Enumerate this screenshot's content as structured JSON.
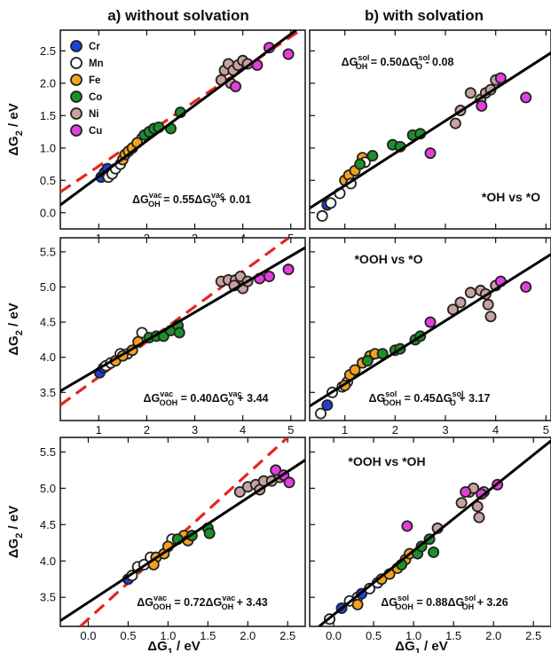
{
  "chart_data": [
    {
      "type": "scatter",
      "panel": "a-top",
      "column_title": "a) without solvation",
      "ylabel": "ΔG2 / eV",
      "xlim": [
        0.2,
        5.3
      ],
      "ylim": [
        -0.25,
        2.82
      ],
      "xticks": [
        "1",
        "2",
        "3",
        "4",
        "5"
      ],
      "yticks": [
        "0.0",
        "0.5",
        "1.0",
        "1.5",
        "2.0",
        "2.5"
      ],
      "show_x_ticklabels": true,
      "equation": {
        "lhs": "ΔG",
        "lhs_sup": "vac",
        "lhs_sub": "OH",
        "mid": " = 0.55ΔG",
        "rhs_sup": "vac",
        "rhs_sub": "O",
        "tail": " + 0.01"
      },
      "fit_line": {
        "slope": 0.55,
        "intercept": 0.01,
        "color": "#000000",
        "style": "solid"
      },
      "reference_line": {
        "slope": 0.5,
        "intercept": 0.22,
        "color": "#e8241c",
        "style": "dashed"
      },
      "legend": {
        "position": "top-left",
        "entries": [
          {
            "name": "Cr",
            "color": "#1f3fd6"
          },
          {
            "name": "Mn",
            "color": "#ffffff"
          },
          {
            "name": "Fe",
            "color": "#f3a31a"
          },
          {
            "name": "Co",
            "color": "#1d8f2a"
          },
          {
            "name": "Ni",
            "color": "#c9a2a0"
          },
          {
            "name": "Cu",
            "color": "#e53ee0"
          }
        ]
      },
      "points": [
        {
          "g": "Cr",
          "x": 1.05,
          "y": 0.55
        },
        {
          "g": "Cr",
          "x": 1.12,
          "y": 0.62
        },
        {
          "g": "Cr",
          "x": 1.18,
          "y": 0.68
        },
        {
          "g": "Mn",
          "x": 1.2,
          "y": 0.55
        },
        {
          "g": "Mn",
          "x": 1.28,
          "y": 0.6
        },
        {
          "g": "Mn",
          "x": 1.35,
          "y": 0.68
        },
        {
          "g": "Mn",
          "x": 1.45,
          "y": 0.75
        },
        {
          "g": "Mn",
          "x": 1.9,
          "y": 1.15
        },
        {
          "g": "Fe",
          "x": 1.5,
          "y": 0.82
        },
        {
          "g": "Fe",
          "x": 1.55,
          "y": 0.9
        },
        {
          "g": "Fe",
          "x": 1.62,
          "y": 0.95
        },
        {
          "g": "Fe",
          "x": 1.7,
          "y": 1.0
        },
        {
          "g": "Fe",
          "x": 1.8,
          "y": 1.08
        },
        {
          "g": "Co",
          "x": 1.95,
          "y": 1.2
        },
        {
          "g": "Co",
          "x": 2.05,
          "y": 1.25
        },
        {
          "g": "Co",
          "x": 2.15,
          "y": 1.3
        },
        {
          "g": "Co",
          "x": 2.25,
          "y": 1.32
        },
        {
          "g": "Co",
          "x": 2.5,
          "y": 1.3
        },
        {
          "g": "Co",
          "x": 2.7,
          "y": 1.55
        },
        {
          "g": "Ni",
          "x": 3.55,
          "y": 2.05
        },
        {
          "g": "Ni",
          "x": 3.62,
          "y": 2.2
        },
        {
          "g": "Ni",
          "x": 3.7,
          "y": 2.3
        },
        {
          "g": "Ni",
          "x": 3.8,
          "y": 2.2
        },
        {
          "g": "Ni",
          "x": 3.9,
          "y": 2.28
        },
        {
          "g": "Ni",
          "x": 4.0,
          "y": 2.35
        },
        {
          "g": "Ni",
          "x": 4.1,
          "y": 2.3
        },
        {
          "g": "Ni",
          "x": 3.75,
          "y": 2.0
        },
        {
          "g": "Cu",
          "x": 3.85,
          "y": 1.95
        },
        {
          "g": "Cu",
          "x": 4.3,
          "y": 2.28
        },
        {
          "g": "Cu",
          "x": 4.55,
          "y": 2.55
        },
        {
          "g": "Cu",
          "x": 4.95,
          "y": 2.45
        }
      ]
    },
    {
      "type": "scatter",
      "panel": "b-top",
      "column_title": "b) with solvation",
      "xlim": [
        0.3,
        5.1
      ],
      "ylim": [
        -0.25,
        2.82
      ],
      "xticks": [
        "1",
        "2",
        "3",
        "4",
        "5"
      ],
      "show_x_ticklabels": false,
      "equation": {
        "lhs": "ΔG",
        "lhs_sup": "sol",
        "lhs_sub": "OH",
        "mid": " = 0.50ΔG",
        "rhs_sup": "sol",
        "rhs_sub": "O",
        "tail": " - 0.08"
      },
      "panel_label": "*OH vs *O",
      "fit_line": {
        "slope": 0.5,
        "intercept": -0.08,
        "color": "#000000",
        "style": "solid"
      },
      "points": [
        {
          "g": "Mn",
          "x": 0.55,
          "y": -0.05
        },
        {
          "g": "Cr",
          "x": 0.65,
          "y": 0.12
        },
        {
          "g": "Mn",
          "x": 0.72,
          "y": 0.15
        },
        {
          "g": "Mn",
          "x": 0.9,
          "y": 0.3
        },
        {
          "g": "Fe",
          "x": 1.0,
          "y": 0.5
        },
        {
          "g": "Fe",
          "x": 1.08,
          "y": 0.58
        },
        {
          "g": "Fe",
          "x": 1.2,
          "y": 0.65
        },
        {
          "g": "Mn",
          "x": 1.12,
          "y": 0.45
        },
        {
          "g": "Fe",
          "x": 1.35,
          "y": 0.85
        },
        {
          "g": "Mn",
          "x": 1.4,
          "y": 0.78
        },
        {
          "g": "Co",
          "x": 1.3,
          "y": 0.75
        },
        {
          "g": "Co",
          "x": 1.55,
          "y": 0.88
        },
        {
          "g": "Co",
          "x": 1.95,
          "y": 1.05
        },
        {
          "g": "Co",
          "x": 2.1,
          "y": 1.02
        },
        {
          "g": "Co",
          "x": 2.35,
          "y": 1.2
        },
        {
          "g": "Co",
          "x": 2.5,
          "y": 1.22
        },
        {
          "g": "Cu",
          "x": 2.7,
          "y": 0.92
        },
        {
          "g": "Ni",
          "x": 3.2,
          "y": 1.38
        },
        {
          "g": "Ni",
          "x": 3.3,
          "y": 1.58
        },
        {
          "g": "Ni",
          "x": 3.5,
          "y": 1.85
        },
        {
          "g": "Ni",
          "x": 3.7,
          "y": 1.75
        },
        {
          "g": "Ni",
          "x": 3.8,
          "y": 1.85
        },
        {
          "g": "Ni",
          "x": 3.9,
          "y": 1.9
        },
        {
          "g": "Ni",
          "x": 4.0,
          "y": 2.05
        },
        {
          "g": "Cu",
          "x": 3.72,
          "y": 1.65
        },
        {
          "g": "Cu",
          "x": 4.1,
          "y": 2.08
        },
        {
          "g": "Cu",
          "x": 4.6,
          "y": 1.78
        }
      ]
    },
    {
      "type": "scatter",
      "panel": "a-middle",
      "ylabel": "ΔG2 / eV",
      "xlim": [
        0.2,
        5.3
      ],
      "ylim": [
        3.1,
        5.7
      ],
      "xticks": [
        "1",
        "2",
        "3",
        "4",
        "5"
      ],
      "yticks": [
        "3.5",
        "4.0",
        "4.5",
        "5.0",
        "5.5"
      ],
      "show_x_ticklabels": true,
      "equation": {
        "lhs": "ΔG",
        "lhs_sup": "vac",
        "lhs_sub": "OOH",
        "mid": " = 0.40ΔG",
        "rhs_sup": "vac",
        "rhs_sub": "O",
        "tail": " + 3.44"
      },
      "fit_line": {
        "slope": 0.4,
        "intercept": 3.44,
        "color": "#000000",
        "style": "solid"
      },
      "reference_line": {
        "slope": 0.5,
        "intercept": 3.22,
        "color": "#e8241c",
        "style": "dashed"
      },
      "points": [
        {
          "g": "Cr",
          "x": 1.02,
          "y": 3.78
        },
        {
          "g": "Cr",
          "x": 1.1,
          "y": 3.85
        },
        {
          "g": "Mn",
          "x": 1.15,
          "y": 3.88
        },
        {
          "g": "Mn",
          "x": 1.25,
          "y": 3.92
        },
        {
          "g": "Mn",
          "x": 1.45,
          "y": 4.05
        },
        {
          "g": "Mn",
          "x": 1.6,
          "y": 4.05
        },
        {
          "g": "Mn",
          "x": 1.9,
          "y": 4.35
        },
        {
          "g": "Fe",
          "x": 1.35,
          "y": 3.95
        },
        {
          "g": "Fe",
          "x": 1.5,
          "y": 4.02
        },
        {
          "g": "Fe",
          "x": 1.7,
          "y": 4.1
        },
        {
          "g": "Fe",
          "x": 1.82,
          "y": 4.22
        },
        {
          "g": "Co",
          "x": 2.05,
          "y": 4.28
        },
        {
          "g": "Co",
          "x": 2.2,
          "y": 4.3
        },
        {
          "g": "Co",
          "x": 2.35,
          "y": 4.3
        },
        {
          "g": "Co",
          "x": 2.5,
          "y": 4.38
        },
        {
          "g": "Co",
          "x": 2.65,
          "y": 4.45
        },
        {
          "g": "Co",
          "x": 2.68,
          "y": 4.35
        },
        {
          "g": "Ni",
          "x": 3.55,
          "y": 5.08
        },
        {
          "g": "Ni",
          "x": 3.7,
          "y": 5.1
        },
        {
          "g": "Ni",
          "x": 3.85,
          "y": 5.1
        },
        {
          "g": "Ni",
          "x": 3.95,
          "y": 5.15
        },
        {
          "g": "Ni",
          "x": 4.0,
          "y": 4.98
        },
        {
          "g": "Ni",
          "x": 4.1,
          "y": 5.08
        },
        {
          "g": "Ni",
          "x": 3.82,
          "y": 5.02
        },
        {
          "g": "Cu",
          "x": 4.35,
          "y": 5.12
        },
        {
          "g": "Cu",
          "x": 4.55,
          "y": 5.15
        },
        {
          "g": "Cu",
          "x": 4.95,
          "y": 5.25
        }
      ]
    },
    {
      "type": "scatter",
      "panel": "b-middle",
      "xlim": [
        0.3,
        5.1
      ],
      "ylim": [
        3.1,
        5.7
      ],
      "xticks": [
        "1",
        "2",
        "3",
        "4",
        "5"
      ],
      "show_x_ticklabels": true,
      "equation": {
        "lhs": "ΔG",
        "lhs_sup": "sol",
        "lhs_sub": "OOH",
        "mid": " = 0.45ΔG",
        "rhs_sup": "sol",
        "rhs_sub": "O",
        "tail": " + 3.17"
      },
      "panel_label": "*OOH vs *O",
      "fit_line": {
        "slope": 0.45,
        "intercept": 3.17,
        "color": "#000000",
        "style": "solid"
      },
      "points": [
        {
          "g": "Mn",
          "x": 0.52,
          "y": 3.2
        },
        {
          "g": "Cr",
          "x": 0.65,
          "y": 3.32
        },
        {
          "g": "Mn",
          "x": 0.75,
          "y": 3.5
        },
        {
          "g": "Mn",
          "x": 0.95,
          "y": 3.58
        },
        {
          "g": "Mn",
          "x": 1.05,
          "y": 3.65
        },
        {
          "g": "Fe",
          "x": 1.0,
          "y": 3.6
        },
        {
          "g": "Fe",
          "x": 1.1,
          "y": 3.75
        },
        {
          "g": "Fe",
          "x": 1.2,
          "y": 3.82
        },
        {
          "g": "Fe",
          "x": 1.35,
          "y": 3.92
        },
        {
          "g": "Fe",
          "x": 1.5,
          "y": 4.02
        },
        {
          "g": "Fe",
          "x": 1.6,
          "y": 4.05
        },
        {
          "g": "Co",
          "x": 1.45,
          "y": 3.95
        },
        {
          "g": "Co",
          "x": 1.75,
          "y": 4.05
        },
        {
          "g": "Co",
          "x": 2.0,
          "y": 4.1
        },
        {
          "g": "Co",
          "x": 2.1,
          "y": 4.12
        },
        {
          "g": "Co",
          "x": 2.4,
          "y": 4.25
        },
        {
          "g": "Co",
          "x": 2.5,
          "y": 4.3
        },
        {
          "g": "Cu",
          "x": 2.7,
          "y": 4.5
        },
        {
          "g": "Ni",
          "x": 3.15,
          "y": 4.68
        },
        {
          "g": "Ni",
          "x": 3.3,
          "y": 4.78
        },
        {
          "g": "Ni",
          "x": 3.5,
          "y": 4.92
        },
        {
          "g": "Ni",
          "x": 3.7,
          "y": 4.95
        },
        {
          "g": "Ni",
          "x": 3.8,
          "y": 4.9
        },
        {
          "g": "Ni",
          "x": 3.85,
          "y": 4.75
        },
        {
          "g": "Ni",
          "x": 3.9,
          "y": 4.58
        },
        {
          "g": "Ni",
          "x": 4.0,
          "y": 5.02
        },
        {
          "g": "Cu",
          "x": 4.1,
          "y": 5.08
        },
        {
          "g": "Cu",
          "x": 4.6,
          "y": 5.0
        }
      ]
    },
    {
      "type": "scatter",
      "panel": "a-bottom",
      "ylabel": "ΔG2 / eV",
      "xlabel": "ΔG1 / eV",
      "xlim": [
        -0.35,
        2.72
      ],
      "ylim": [
        3.1,
        5.7
      ],
      "xticks": [
        "0.0",
        "0.5",
        "1.0",
        "1.5",
        "2.0",
        "2.5"
      ],
      "yticks": [
        "3.5",
        "4.0",
        "4.5",
        "5.0",
        "5.5"
      ],
      "show_x_ticklabels": true,
      "equation": {
        "lhs": "ΔG",
        "lhs_sup": "vac",
        "lhs_sub": "OOH",
        "mid": " = 0.72ΔG",
        "rhs_sup": "vac",
        "rhs_sub": "OH",
        "tail": " + 3.43"
      },
      "fit_line": {
        "slope": 0.72,
        "intercept": 3.43,
        "color": "#000000",
        "style": "solid"
      },
      "reference_line": {
        "slope": 1.0,
        "intercept": 3.2,
        "color": "#e8241c",
        "style": "dashed"
      },
      "points": [
        {
          "g": "Cr",
          "x": 0.5,
          "y": 3.75
        },
        {
          "g": "Mn",
          "x": 0.55,
          "y": 3.8
        },
        {
          "g": "Mn",
          "x": 0.62,
          "y": 3.92
        },
        {
          "g": "Mn",
          "x": 0.7,
          "y": 3.95
        },
        {
          "g": "Mn",
          "x": 0.78,
          "y": 4.05
        },
        {
          "g": "Mn",
          "x": 1.05,
          "y": 4.3
        },
        {
          "g": "Fe",
          "x": 0.85,
          "y": 4.05
        },
        {
          "g": "Fe",
          "x": 0.95,
          "y": 4.1
        },
        {
          "g": "Fe",
          "x": 0.82,
          "y": 3.95
        },
        {
          "g": "Fe",
          "x": 1.0,
          "y": 4.2
        },
        {
          "g": "Fe",
          "x": 1.2,
          "y": 4.35
        },
        {
          "g": "Fe",
          "x": 1.25,
          "y": 4.28
        },
        {
          "g": "Co",
          "x": 1.12,
          "y": 4.3
        },
        {
          "g": "Co",
          "x": 1.3,
          "y": 4.35
        },
        {
          "g": "Co",
          "x": 1.5,
          "y": 4.45
        },
        {
          "g": "Co",
          "x": 1.52,
          "y": 4.38
        },
        {
          "g": "Ni",
          "x": 1.9,
          "y": 4.95
        },
        {
          "g": "Ni",
          "x": 2.0,
          "y": 5.02
        },
        {
          "g": "Ni",
          "x": 2.1,
          "y": 5.05
        },
        {
          "g": "Ni",
          "x": 2.15,
          "y": 4.98
        },
        {
          "g": "Ni",
          "x": 2.2,
          "y": 5.1
        },
        {
          "g": "Ni",
          "x": 2.3,
          "y": 5.1
        },
        {
          "g": "Ni",
          "x": 2.4,
          "y": 5.15
        },
        {
          "g": "Cu",
          "x": 2.35,
          "y": 5.25
        },
        {
          "g": "Cu",
          "x": 2.45,
          "y": 5.18
        },
        {
          "g": "Cu",
          "x": 2.52,
          "y": 5.08
        }
      ]
    },
    {
      "type": "scatter",
      "panel": "b-bottom",
      "xlabel": "ΔG1 / eV",
      "xlim": [
        -0.3,
        2.72
      ],
      "ylim": [
        3.1,
        5.7
      ],
      "xticks": [
        "0.0",
        "0.5",
        "1.0",
        "1.5",
        "2.0",
        "2.5"
      ],
      "show_x_ticklabels": true,
      "equation": {
        "lhs": "ΔG",
        "lhs_sup": "sol",
        "lhs_sub": "OOH",
        "mid": " = 0.88ΔG",
        "rhs_sup": "sol",
        "rhs_sub": "OH",
        "tail": " + 3.26"
      },
      "panel_label": "*OOH vs *OH",
      "fit_line": {
        "slope": 0.88,
        "intercept": 3.26,
        "color": "#000000",
        "style": "solid"
      },
      "points": [
        {
          "g": "Mn",
          "x": -0.05,
          "y": 3.2
        },
        {
          "g": "Cr",
          "x": 0.1,
          "y": 3.35
        },
        {
          "g": "Mn",
          "x": 0.2,
          "y": 3.45
        },
        {
          "g": "Mn",
          "x": 0.3,
          "y": 3.5
        },
        {
          "g": "Cr",
          "x": 0.35,
          "y": 3.55
        },
        {
          "g": "Mn",
          "x": 0.45,
          "y": 3.62
        },
        {
          "g": "Mn",
          "x": 0.55,
          "y": 3.7
        },
        {
          "g": "Fe",
          "x": 0.3,
          "y": 3.4
        },
        {
          "g": "Fe",
          "x": 0.6,
          "y": 3.75
        },
        {
          "g": "Fe",
          "x": 0.7,
          "y": 3.82
        },
        {
          "g": "Fe",
          "x": 0.8,
          "y": 3.9
        },
        {
          "g": "Fe",
          "x": 0.9,
          "y": 4.02
        },
        {
          "g": "Fe",
          "x": 0.95,
          "y": 4.1
        },
        {
          "g": "Co",
          "x": 0.85,
          "y": 3.95
        },
        {
          "g": "Co",
          "x": 1.05,
          "y": 4.1
        },
        {
          "g": "Co",
          "x": 1.1,
          "y": 4.2
        },
        {
          "g": "Co",
          "x": 1.2,
          "y": 4.3
        },
        {
          "g": "Co",
          "x": 1.25,
          "y": 4.12
        },
        {
          "g": "Cu",
          "x": 0.92,
          "y": 4.48
        },
        {
          "g": "Ni",
          "x": 1.3,
          "y": 4.45
        },
        {
          "g": "Ni",
          "x": 1.6,
          "y": 4.8
        },
        {
          "g": "Ni",
          "x": 1.7,
          "y": 4.95
        },
        {
          "g": "Ni",
          "x": 1.75,
          "y": 5.0
        },
        {
          "g": "Ni",
          "x": 1.8,
          "y": 4.75
        },
        {
          "g": "Ni",
          "x": 1.82,
          "y": 4.6
        },
        {
          "g": "Ni",
          "x": 1.88,
          "y": 4.95
        },
        {
          "g": "Cu",
          "x": 1.65,
          "y": 4.95
        },
        {
          "g": "Cu",
          "x": 1.85,
          "y": 4.92
        },
        {
          "g": "Cu",
          "x": 2.05,
          "y": 5.05
        }
      ]
    }
  ]
}
